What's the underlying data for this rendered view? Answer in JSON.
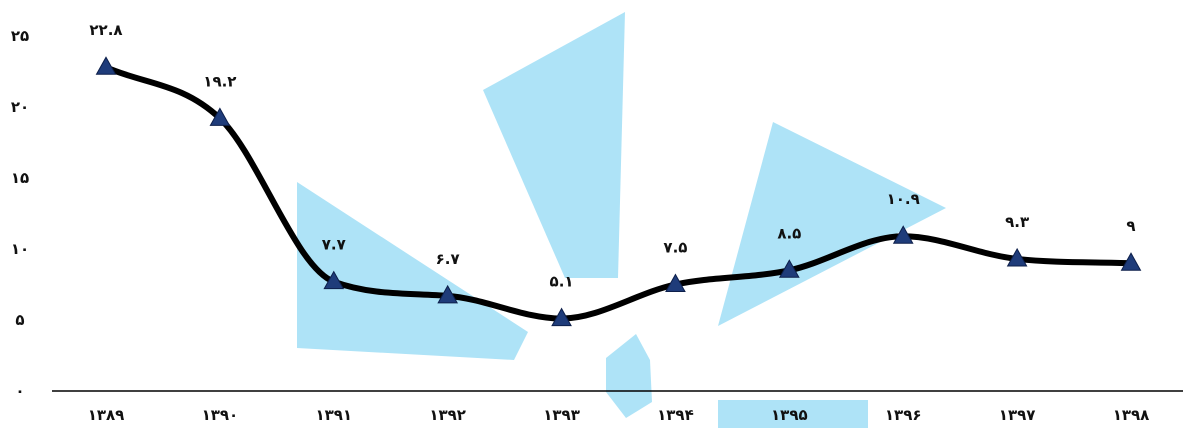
{
  "chart_data": {
    "type": "line",
    "categories": [
      "۱۳۸۹",
      "۱۳۹۰",
      "۱۳۹۱",
      "۱۳۹۲",
      "۱۳۹۳",
      "۱۳۹۴",
      "۱۳۹۵",
      "۱۳۹۶",
      "۱۳۹۷",
      "۱۳۹۸"
    ],
    "values": [
      22.8,
      19.2,
      7.7,
      6.7,
      5.1,
      7.5,
      8.5,
      10.9,
      9.3,
      9
    ],
    "data_labels": [
      "۲۲.۸",
      "۱۹.۲",
      "۷.۷",
      "۶.۷",
      "۵.۱",
      "۷.۵",
      "۸.۵",
      "۱۰.۹",
      "۹.۳",
      "۹"
    ],
    "y_ticks": [
      0,
      5,
      10,
      15,
      20,
      25
    ],
    "y_tick_labels": [
      "۰",
      "۵",
      "۱۰",
      "۱۵",
      "۲۰",
      "۲۵"
    ],
    "ylim": [
      0,
      25
    ],
    "title": "",
    "xlabel": "",
    "ylabel": "",
    "grid": false,
    "legend": "none",
    "smooth": true,
    "marker": "triangle",
    "colors": {
      "line": "#000000",
      "marker_fill": "#1f3c7a",
      "marker_stroke": "#0d1f4a",
      "axis": "#000000",
      "watermark": "#aee3f7"
    }
  }
}
